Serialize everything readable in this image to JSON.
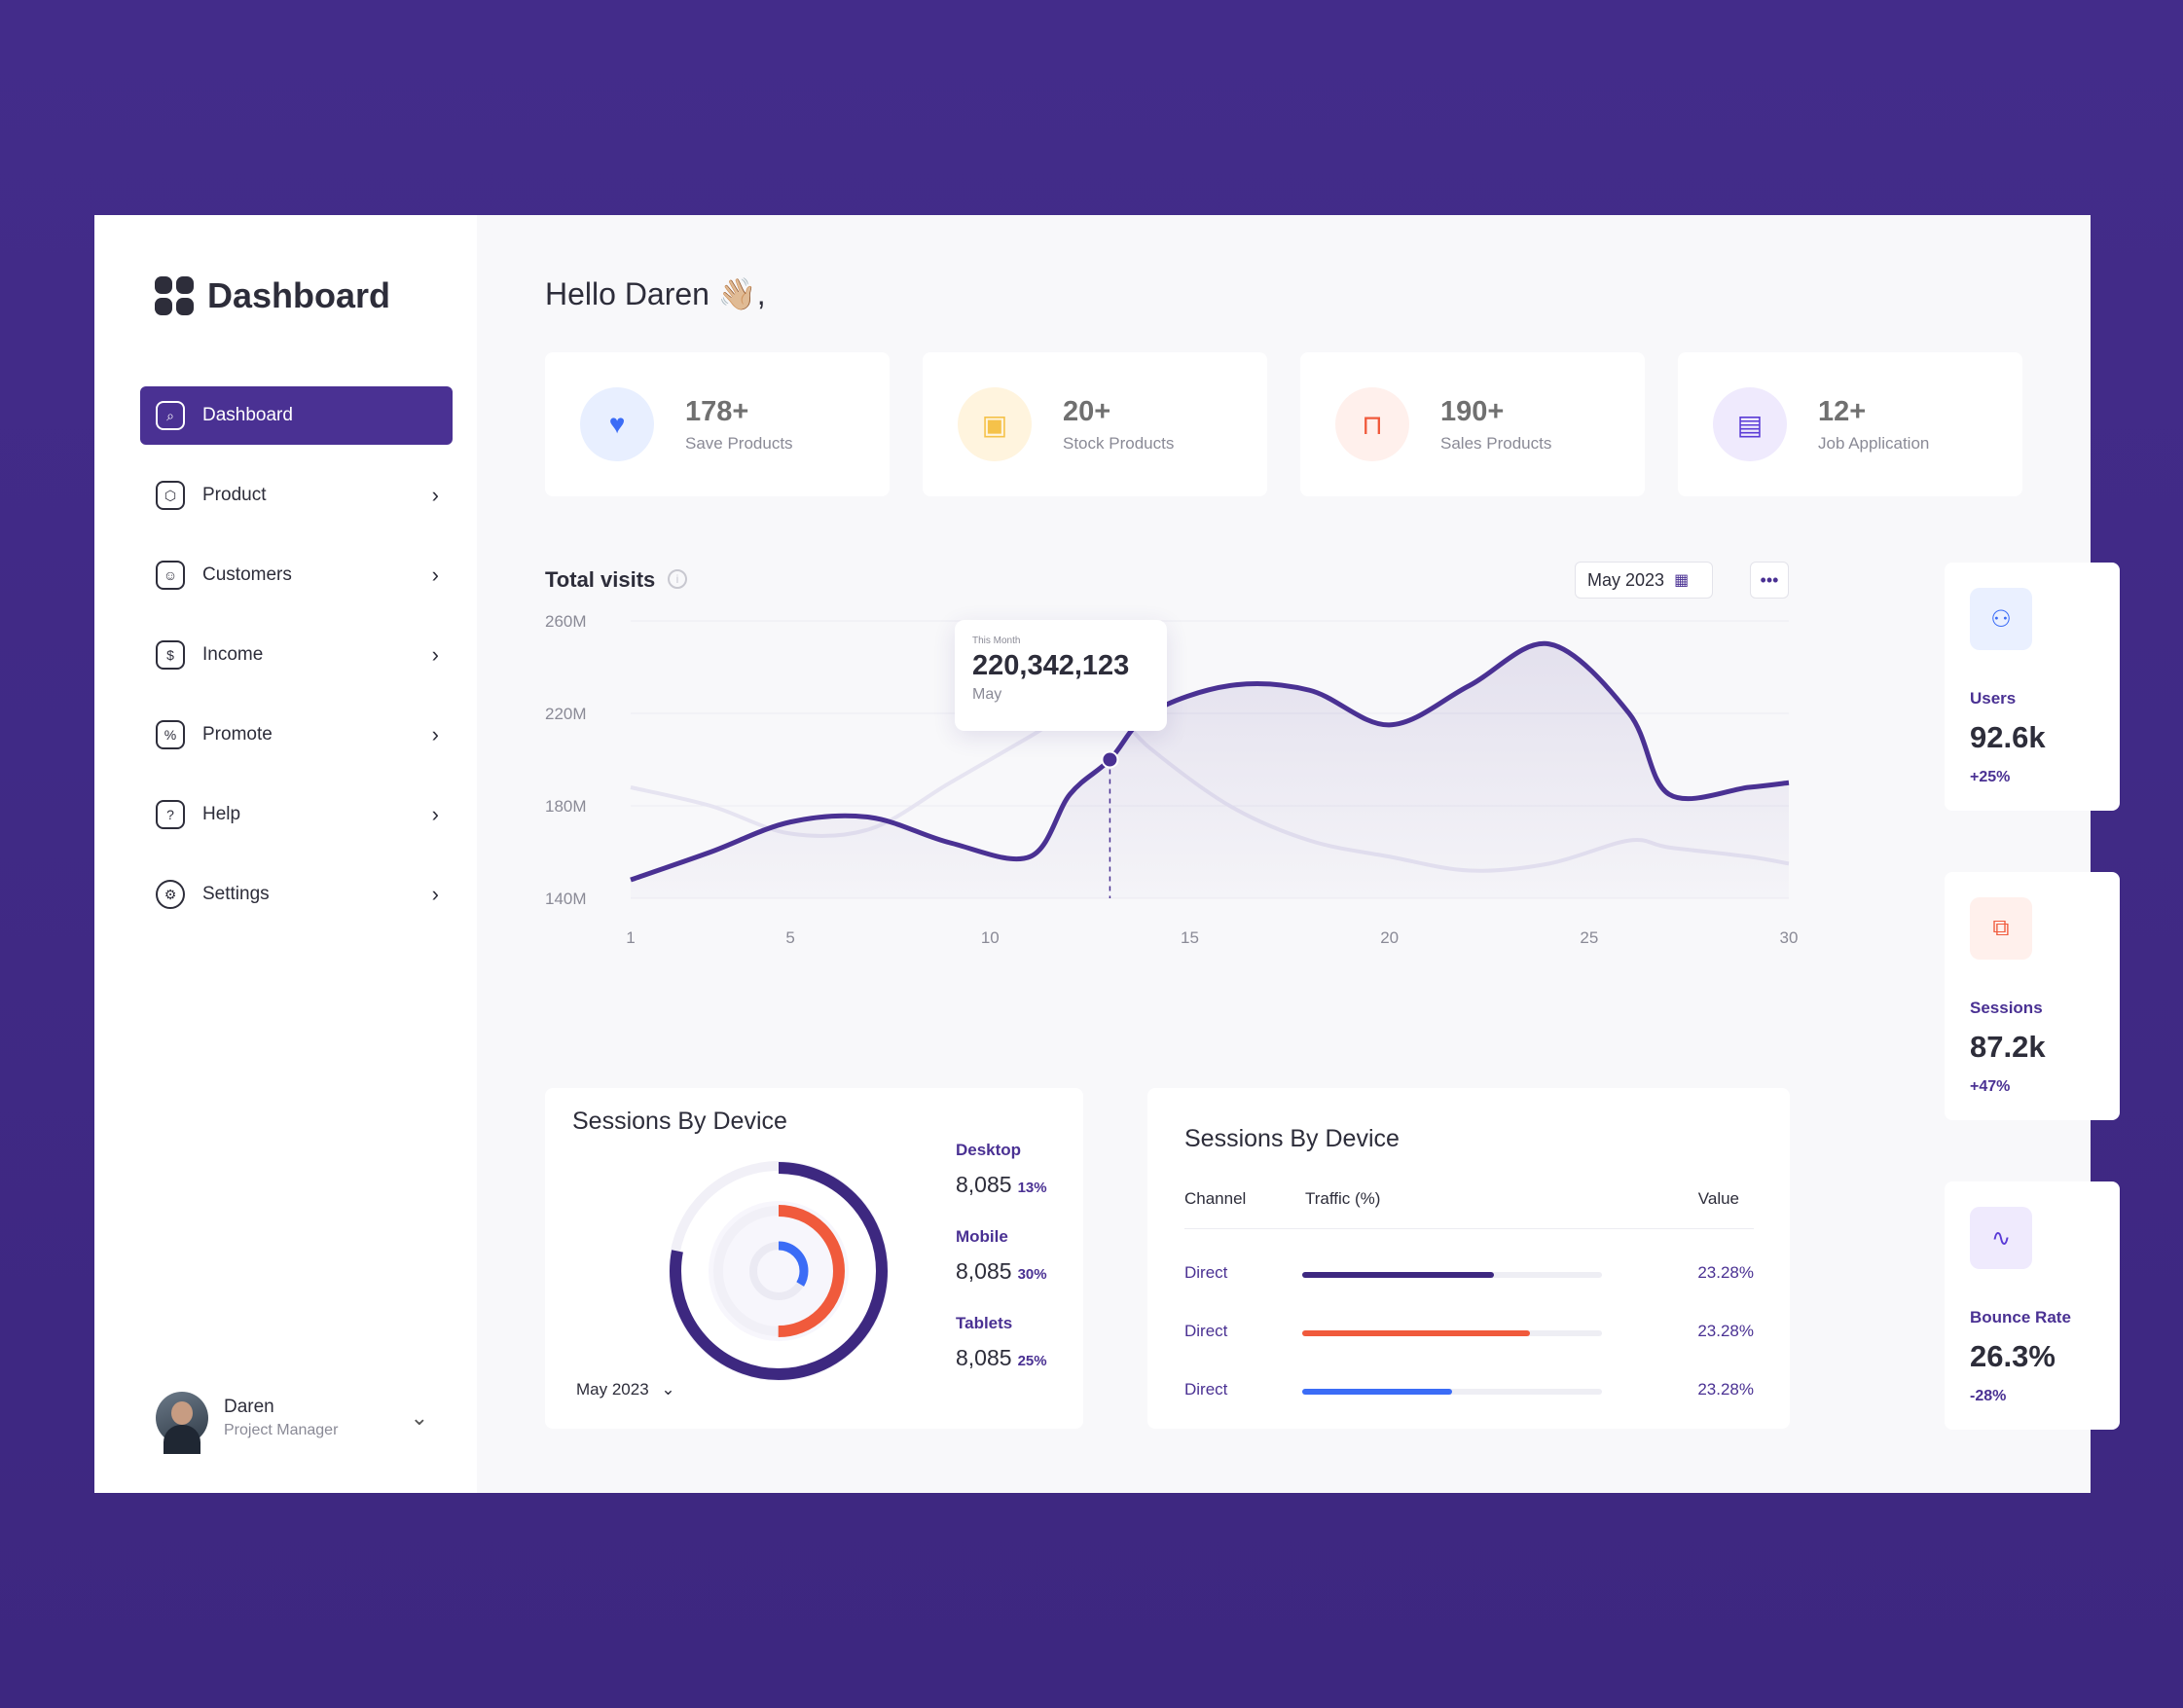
{
  "sidebar": {
    "brand": "Dashboard",
    "items": [
      {
        "label": "Dashboard",
        "icon": "search-square-icon"
      },
      {
        "label": "Product",
        "icon": "box-icon"
      },
      {
        "label": "Customers",
        "icon": "user-square-icon"
      },
      {
        "label": "Income",
        "icon": "money-icon"
      },
      {
        "label": "Promote",
        "icon": "discount-icon"
      },
      {
        "label": "Help",
        "icon": "help-icon"
      },
      {
        "label": "Settings",
        "icon": "gear-icon"
      }
    ],
    "profile": {
      "name": "Daren",
      "role": "Project Manager"
    }
  },
  "header": {
    "greeting": "Hello Daren 👋🏼,"
  },
  "stats": [
    {
      "value": "178+",
      "label": "Save Products",
      "color": "#3b6cf6",
      "bg": "#e8efff"
    },
    {
      "value": "20+",
      "label": "Stock Products",
      "color": "#f5c24a",
      "bg": "#fff4de"
    },
    {
      "value": "190+",
      "label": "Sales Products",
      "color": "#f05a3c",
      "bg": "#fff0ec"
    },
    {
      "value": "12+",
      "label": "Job Application",
      "color": "#5a3bd6",
      "bg": "#efeafd"
    }
  ],
  "visits": {
    "title": "Total visits",
    "date": "May 2023",
    "tooltip": {
      "caption": "This Month",
      "value": "220,342,123",
      "period": "May"
    }
  },
  "chart_data": {
    "type": "line",
    "x": [
      1,
      3,
      5,
      7,
      9,
      11,
      12,
      13,
      14,
      16,
      18,
      20,
      22,
      24,
      26,
      27,
      29,
      30
    ],
    "series": [
      {
        "values": [
          148,
          160,
          173,
          175,
          164,
          158,
          185,
          200,
          220,
          232,
          230,
          215,
          232,
          250,
          220,
          185,
          188,
          190
        ]
      },
      {
        "values": [
          188,
          180,
          168,
          170,
          190,
          210,
          220,
          222,
          205,
          180,
          165,
          158,
          152,
          155,
          165,
          162,
          158,
          155
        ]
      }
    ],
    "y_ticks": [
      "260M",
      "220M",
      "180M",
      "140M"
    ],
    "x_ticks": [
      "1",
      "5",
      "10",
      "15",
      "20",
      "25",
      "30"
    ],
    "ylim": [
      140,
      260
    ],
    "xlim": [
      1,
      30
    ],
    "highlight_x": 13,
    "colors": {
      "primary": "#4a3193",
      "secondary": "#e6e4f1"
    }
  },
  "kpis": [
    {
      "label": "Users",
      "value": "92.6k",
      "delta": "+25%",
      "icon": "users-icon",
      "color": "#3b6cf6",
      "bg": "#eaf0ff"
    },
    {
      "label": "Sessions",
      "value": "87.2k",
      "delta": "+47%",
      "icon": "document-clock-icon",
      "color": "#f05a3c",
      "bg": "#fff0ec"
    },
    {
      "label": "Bounce Rate",
      "value": "26.3%",
      "delta": "-28%",
      "icon": "activity-icon",
      "color": "#5a3bd6",
      "bg": "#efeafd"
    }
  ],
  "device_donut": {
    "title": "Sessions By Device",
    "date": "May 2023",
    "items": [
      {
        "name": "Desktop",
        "value": "8,085",
        "pct": "13%",
        "color": "#3d2880"
      },
      {
        "name": "Mobile",
        "value": "8,085",
        "pct": "30%",
        "color": "#f05a3c"
      },
      {
        "name": "Tablets",
        "value": "8,085",
        "pct": "25%",
        "color": "#3b6cf6"
      }
    ]
  },
  "device_table": {
    "title": "Sessions By Device",
    "headers": {
      "channel": "Channel",
      "traffic": "Traffic (%)",
      "value": "Value"
    },
    "rows": [
      {
        "channel": "Direct",
        "value": "23.28%",
        "level": 0.64,
        "color": "#3d2880"
      },
      {
        "channel": "Direct",
        "value": "23.28%",
        "level": 0.76,
        "color": "#f05a3c"
      },
      {
        "channel": "Direct",
        "value": "23.28%",
        "level": 0.5,
        "color": "#3b6cf6"
      }
    ]
  }
}
